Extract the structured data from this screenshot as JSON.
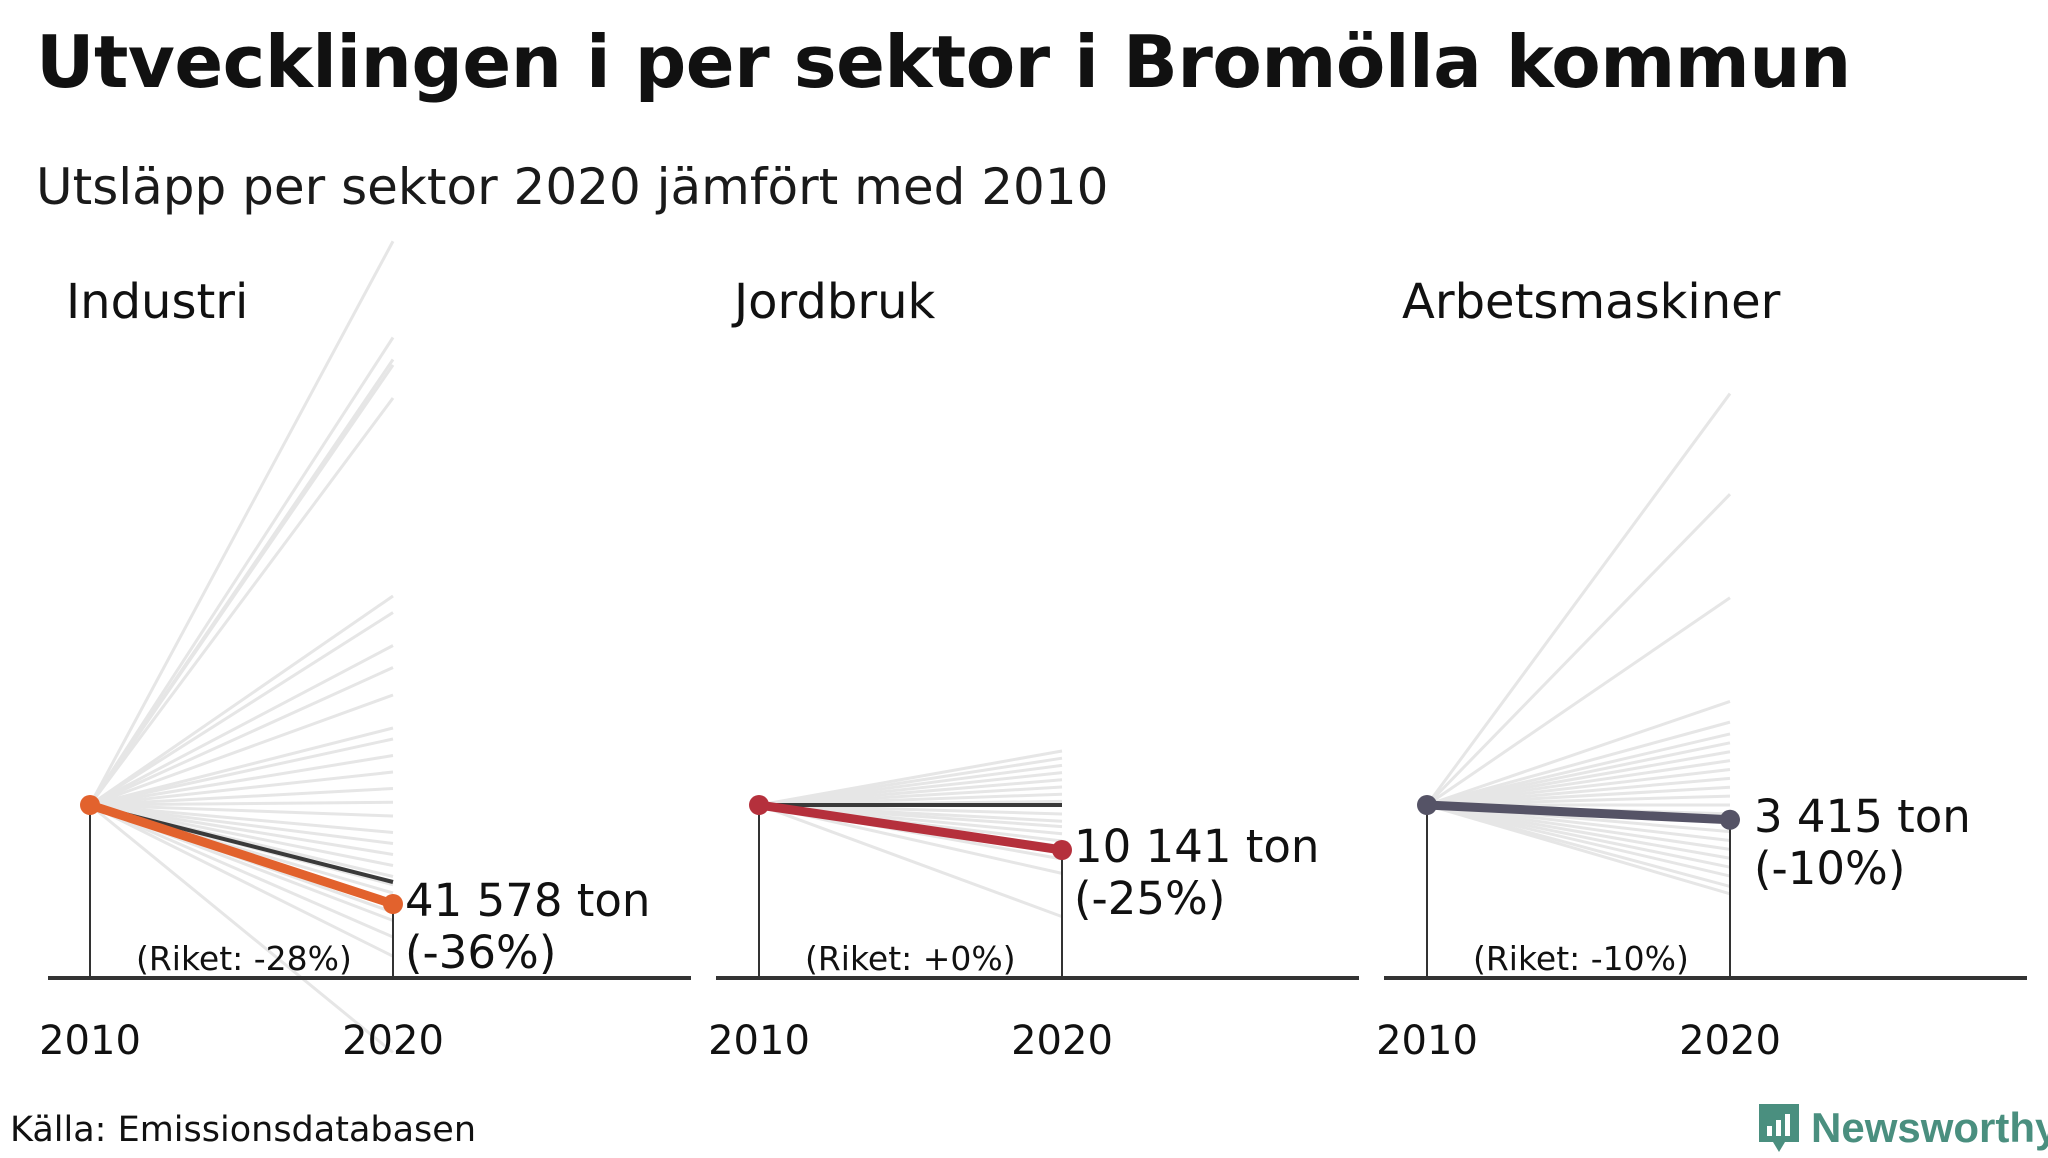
{
  "title": "Utvecklingen i per sektor i Bromölla kommun",
  "subtitle": "Utsläpp per sektor 2020 jämfört med 2010",
  "source": "Källa: Emissionsdatabasen",
  "brand": "Newsworthy",
  "colors": {
    "background_lines": "#e6e6e6",
    "national_line": "#3a3a3a",
    "axis": "#333333"
  },
  "chart_data": [
    {
      "type": "line",
      "title": "Industri",
      "x": [
        "2010",
        "2020"
      ],
      "value_label": "41 578 ton",
      "change_label": "(-36%)",
      "national_label": "(Riket: -28%)",
      "color": "#e2622d",
      "index_2010": 100,
      "index_2020": 64,
      "national_index_2020": 72,
      "other_municipalities_index_2020": [
        10,
        45,
        52,
        58,
        61,
        68,
        71,
        74,
        78,
        82,
        86,
        90,
        96,
        101,
        106,
        112,
        118,
        124,
        128,
        140,
        150,
        158,
        170,
        176,
        248,
        260,
        262,
        270,
        305
      ]
    },
    {
      "type": "line",
      "title": "Jordbruk",
      "x": [
        "2010",
        "2020"
      ],
      "value_label": "10 141 ton",
      "change_label": "(-25%)",
      "national_label": "(Riket: +0%)",
      "color": "#b5303c",
      "index_2010": 100,
      "index_2020": 75,
      "national_index_2020": 100,
      "other_municipalities_index_2020": [
        38,
        62,
        70,
        74,
        77,
        80,
        84,
        88,
        91,
        95,
        102,
        106,
        110,
        114,
        118,
        122,
        126,
        130
      ]
    },
    {
      "type": "line",
      "title": "Arbetsmaskiner",
      "x": [
        "2010",
        "2020"
      ],
      "value_label": "3 415 ton",
      "change_label": "(-10%)",
      "national_label": "(Riket: -10%)",
      "color": "#555366",
      "index_2010": 100,
      "index_2020": 90,
      "national_index_2020": 90,
      "other_municipalities_index_2020": [
        40,
        45,
        52,
        58,
        64,
        70,
        76,
        82,
        88,
        94,
        100,
        106,
        112,
        118,
        124,
        130,
        136,
        142,
        148,
        156,
        170,
        240,
        310,
        378
      ]
    }
  ]
}
